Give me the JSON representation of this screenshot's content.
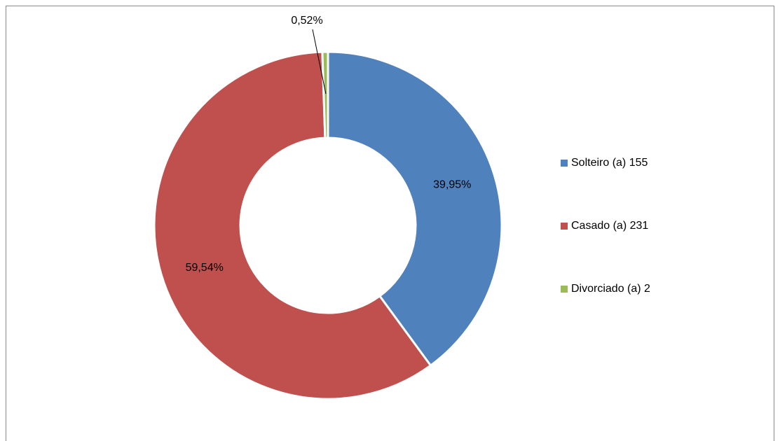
{
  "chart_data": {
    "type": "donut",
    "categories": [
      "Solteiro (a) 155",
      "Casado (a) 231",
      "Divorciado (a) 2"
    ],
    "values": [
      39.95,
      59.54,
      0.52
    ],
    "value_labels": [
      "39,95%",
      "59,54%",
      "0,52%"
    ],
    "colors": [
      "#4f81bd",
      "#c0504d",
      "#9bbb59"
    ],
    "legend": "right"
  }
}
